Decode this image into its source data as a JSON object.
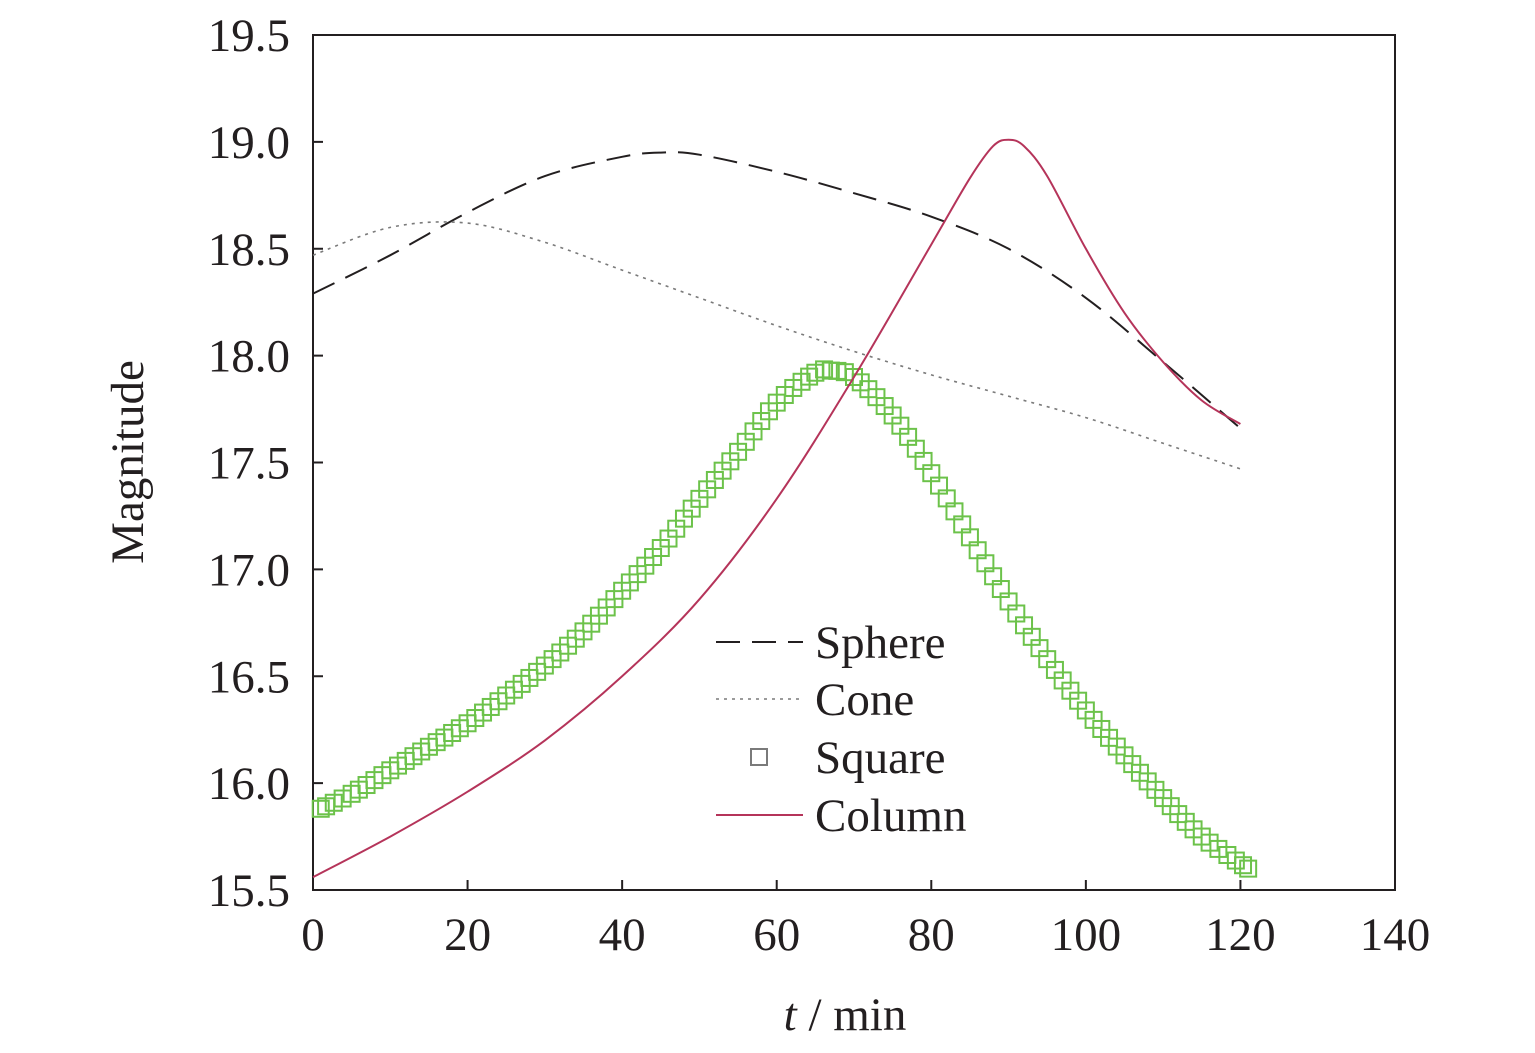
{
  "chart_data": {
    "type": "line",
    "xlabel_var": "t",
    "xlabel_unit": " / min",
    "ylabel": "Magnitude",
    "xlim": [
      0,
      140
    ],
    "ylim": [
      15.5,
      19.5
    ],
    "xticks": [
      "0",
      "20",
      "40",
      "60",
      "80",
      "100",
      "120",
      "140"
    ],
    "yticks": [
      "15.5",
      "16.0",
      "16.5",
      "17.0",
      "17.5",
      "18.0",
      "18.5",
      "19.0",
      "19.5"
    ],
    "grid": false,
    "legend_position": "center-right",
    "series": [
      {
        "name": "Sphere",
        "style": "dashed",
        "color": "#231f20",
        "x": [
          0,
          10,
          20,
          30,
          40,
          45,
          50,
          60,
          70,
          80,
          90,
          100,
          110,
          120
        ],
        "y": [
          18.29,
          18.47,
          18.67,
          18.84,
          18.93,
          18.95,
          18.94,
          18.86,
          18.76,
          18.65,
          18.5,
          18.27,
          17.97,
          17.66
        ]
      },
      {
        "name": "Cone",
        "style": "dotted",
        "color": "#7a7a7a",
        "x": [
          0,
          10,
          20,
          30,
          40,
          50,
          60,
          70,
          80,
          90,
          100,
          110,
          120
        ],
        "y": [
          18.47,
          18.6,
          18.62,
          18.53,
          18.4,
          18.27,
          18.14,
          18.02,
          17.91,
          17.81,
          17.71,
          17.59,
          17.47
        ]
      },
      {
        "name": "Square",
        "style": "markers",
        "color": "#6cc24a",
        "x": [
          1,
          5,
          10,
          15,
          20,
          25,
          30,
          35,
          40,
          45,
          50,
          55,
          60,
          65,
          67,
          70,
          75,
          80,
          85,
          90,
          95,
          100,
          105,
          110,
          115,
          121
        ],
        "y": [
          15.88,
          15.95,
          16.06,
          16.17,
          16.28,
          16.41,
          16.55,
          16.71,
          16.9,
          17.1,
          17.33,
          17.55,
          17.78,
          17.92,
          17.93,
          17.9,
          17.72,
          17.45,
          17.15,
          16.85,
          16.58,
          16.34,
          16.13,
          15.93,
          15.75,
          15.6
        ]
      },
      {
        "name": "Column",
        "style": "solid",
        "color": "#b5345a",
        "x": [
          0,
          10,
          20,
          30,
          40,
          50,
          60,
          70,
          80,
          85,
          88,
          90,
          92,
          95,
          100,
          105,
          110,
          115,
          120
        ],
        "y": [
          15.56,
          15.75,
          15.96,
          16.2,
          16.5,
          16.86,
          17.33,
          17.9,
          18.52,
          18.83,
          18.98,
          19.01,
          18.98,
          18.84,
          18.5,
          18.2,
          17.97,
          17.79,
          17.68
        ]
      }
    ]
  }
}
